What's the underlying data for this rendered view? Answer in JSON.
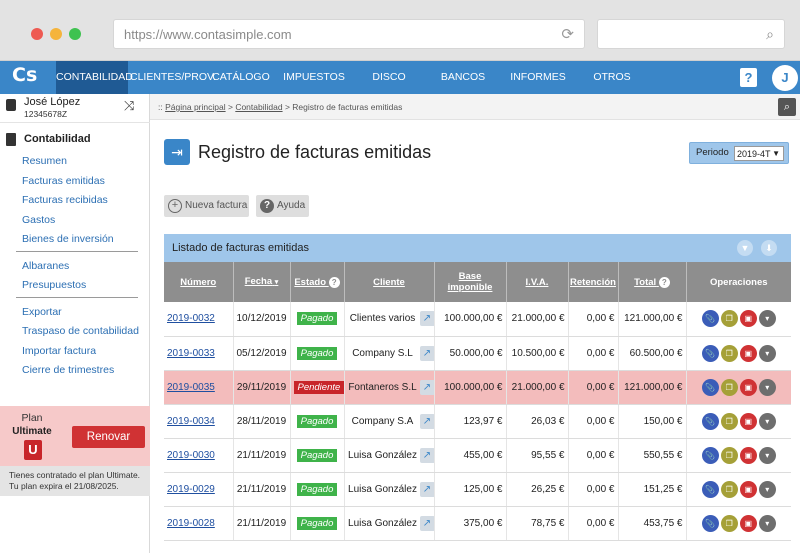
{
  "browser": {
    "url": "https://www.contasimple.com"
  },
  "nav": {
    "logo": "Cs",
    "items": [
      {
        "label": "CONTABILIDAD",
        "active": true
      },
      {
        "label": "CLIENTES/PROV.",
        "active": false
      },
      {
        "label": "CATÁLOGO",
        "active": false
      },
      {
        "label": "IMPUESTOS",
        "active": false
      },
      {
        "label": "DISCO VIRTUAL",
        "active": false
      },
      {
        "label": "BANCOS",
        "active": false
      },
      {
        "label": "INFORMES",
        "active": false
      },
      {
        "label": "OTROS",
        "active": false
      }
    ],
    "help": "?",
    "user_initial": "J"
  },
  "sidebar": {
    "user_name": "José López",
    "user_id": "12345678Z",
    "section": "Contabilidad",
    "group1": [
      "Resumen",
      "Facturas emitidas",
      "Facturas recibidas",
      "Gastos",
      "Bienes de inversión"
    ],
    "group2": [
      "Albaranes",
      "Presupuestos"
    ],
    "group3": [
      "Exportar",
      "Traspaso de contabilidad",
      "Importar factura",
      "Cierre de trimestres"
    ],
    "plan_label": "Plan",
    "plan_name": "Ultimate",
    "plan_badge": "U",
    "renew": "Renovar",
    "plan_info_1": "Tienes contratado el plan Ultimate.",
    "plan_info_2": "Tu plan expira el 21/08/2025."
  },
  "breadcrumb": {
    "prefix": "::",
    "home": "Página principal",
    "sep": ">",
    "section": "Contabilidad",
    "current": "Registro de facturas emitidas"
  },
  "main": {
    "title": "Registro de facturas emitidas",
    "period_label": "Periodo",
    "period_value": "2019-4T",
    "new_invoice": "Nueva factura",
    "help": "Ayuda",
    "list_title": "Listado de facturas emitidas"
  },
  "table": {
    "headers": {
      "numero": "Número",
      "fecha": "Fecha",
      "estado": "Estado",
      "cliente": "Cliente",
      "base1": "Base",
      "base2": "imponible",
      "iva": "I.V.A.",
      "retencion": "Retención",
      "total": "Total",
      "operaciones": "Operaciones"
    },
    "rows": [
      {
        "numero": "2019-0032",
        "fecha": "10/12/2019",
        "estado": "Pagado",
        "cliente": "Clientes varios",
        "base": "100.000,00 €",
        "iva": "21.000,00 €",
        "retencion": "0,00 €",
        "total": "121.000,00 €"
      },
      {
        "numero": "2019-0033",
        "fecha": "05/12/2019",
        "estado": "Pagado",
        "cliente": "Company S.L",
        "base": "50.000,00 €",
        "iva": "10.500,00 €",
        "retencion": "0,00 €",
        "total": "60.500,00 €"
      },
      {
        "numero": "2019-0035",
        "fecha": "29/11/2019",
        "estado": "Pendiente",
        "cliente": "Fontaneros S.L",
        "base": "100.000,00 €",
        "iva": "21.000,00 €",
        "retencion": "0,00 €",
        "total": "121.000,00 €"
      },
      {
        "numero": "2019-0034",
        "fecha": "28/11/2019",
        "estado": "Pagado",
        "cliente": "Company S.A",
        "base": "123,97 €",
        "iva": "26,03 €",
        "retencion": "0,00 €",
        "total": "150,00 €"
      },
      {
        "numero": "2019-0030",
        "fecha": "21/11/2019",
        "estado": "Pagado",
        "cliente": "Luisa González",
        "base": "455,00 €",
        "iva": "95,55 €",
        "retencion": "0,00 €",
        "total": "550,55 €"
      },
      {
        "numero": "2019-0029",
        "fecha": "21/11/2019",
        "estado": "Pagado",
        "cliente": "Luisa González",
        "base": "125,00 €",
        "iva": "26,25 €",
        "retencion": "0,00 €",
        "total": "151,25 €"
      },
      {
        "numero": "2019-0028",
        "fecha": "21/11/2019",
        "estado": "Pagado",
        "cliente": "Luisa González",
        "base": "375,00 €",
        "iva": "78,75 €",
        "retencion": "0,00 €",
        "total": "453,75 €"
      }
    ]
  },
  "colors": {
    "brand": "#3a86c8",
    "nav_active": "#1f5a94",
    "paid": "#3fb34a",
    "pending": "#c8252a",
    "highlight_row": "#f3bcbc"
  }
}
